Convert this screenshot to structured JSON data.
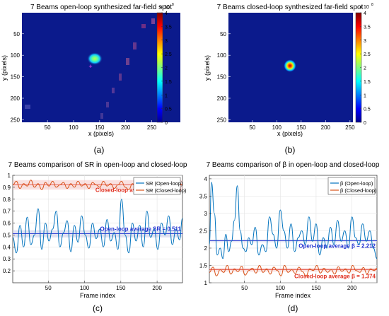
{
  "colors": {
    "blue_series": "#0072BD",
    "orange_series": "#D95319",
    "heat_bg": "#0b1a8c",
    "red_text": "#e03020",
    "blue_text": "#1f2fd0",
    "band_red": "#f4c8c8",
    "band_blue": "#c9cbe8"
  },
  "chart_data": [
    {
      "type": "heatmap",
      "title": "7 Beams open-loop synthesized far-field spot",
      "xlabel": "x (pixels)",
      "ylabel": "y (pixels)",
      "xlim": [
        1,
        256
      ],
      "ylim": [
        1,
        256
      ],
      "xticks": [
        "50",
        "100",
        "150",
        "200",
        "250"
      ],
      "yticks": [
        "50",
        "100",
        "150",
        "200",
        "250"
      ],
      "colorbar": {
        "ticks": [
          "0",
          "0.5",
          "1",
          "1.5",
          "2",
          "2.5",
          "3",
          "3.5",
          "4"
        ],
        "multiplier": "× 10",
        "exponent": "8",
        "range": [
          0,
          4
        ]
      },
      "spot": {
        "x": 130,
        "y": 112,
        "peak": 2.2
      },
      "marker": {
        "x": 128,
        "y": 128,
        "symbol": "+"
      },
      "panel_label": "(a)"
    },
    {
      "type": "heatmap",
      "title": "7 Beams closed-loop synthesized far-field spot",
      "xlabel": "x (pixels)",
      "ylabel": "y (pixels)",
      "xlim": [
        1,
        256
      ],
      "ylim": [
        1,
        256
      ],
      "xticks": [
        "50",
        "100",
        "150",
        "200",
        "250"
      ],
      "yticks": [
        "50",
        "100",
        "150",
        "200",
        "250"
      ],
      "colorbar": {
        "ticks": [
          "0",
          "0.5",
          "1",
          "1.5",
          "2",
          "2.5",
          "3",
          "3.5",
          "4"
        ],
        "multiplier": "× 10",
        "exponent": "8",
        "range": [
          0,
          4
        ]
      },
      "spot": {
        "x": 125,
        "y": 125,
        "peak": 4.0
      },
      "panel_label": "(b)"
    },
    {
      "type": "line",
      "title": "7 Beams comparison of SR in open-loop and closed-loop",
      "xlabel": "Frame index",
      "ylabel": "",
      "xlim": [
        1,
        235
      ],
      "ylim": [
        0.1,
        1.0
      ],
      "xticks": [
        50,
        100,
        150,
        200
      ],
      "yticks": [
        0.2,
        0.3,
        0.4,
        0.5,
        0.6,
        0.7,
        0.8,
        0.9,
        1
      ],
      "ytick_labels": [
        "0.2",
        "0.3",
        "0.4",
        "0.5",
        "0.6",
        "0.7",
        "0.8",
        "0.9",
        "1"
      ],
      "legend": {
        "position": "top-right",
        "entries": [
          "SR (Open-loop)",
          "SR (Closed-loop)"
        ]
      },
      "series": [
        {
          "name": "SR (Open-loop)",
          "color": "#0072BD",
          "x": [
            1,
            6,
            11,
            16,
            21,
            26,
            31,
            36,
            41,
            46,
            51,
            56,
            61,
            66,
            71,
            76,
            81,
            86,
            91,
            96,
            101,
            106,
            111,
            116,
            121,
            126,
            131,
            136,
            141,
            146,
            151,
            156,
            161,
            166,
            171,
            176,
            181,
            186,
            191,
            196,
            201,
            206,
            211,
            216,
            221,
            226,
            231,
            235
          ],
          "y": [
            0.48,
            0.35,
            0.58,
            0.4,
            0.65,
            0.42,
            0.5,
            0.72,
            0.38,
            0.6,
            0.45,
            0.55,
            0.7,
            0.4,
            0.52,
            0.62,
            0.36,
            0.58,
            0.44,
            0.66,
            0.5,
            0.39,
            0.6,
            0.47,
            0.55,
            0.4,
            0.63,
            0.45,
            0.52,
            0.38,
            0.8,
            0.5,
            0.35,
            0.6,
            0.45,
            0.58,
            0.4,
            0.7,
            0.48,
            0.55,
            0.38,
            0.6,
            0.5,
            0.66,
            0.42,
            0.55,
            0.46,
            0.64
          ]
        },
        {
          "name": "SR (Closed-loop)",
          "color": "#D95319",
          "x": [
            1,
            6,
            11,
            16,
            21,
            26,
            31,
            36,
            41,
            46,
            51,
            56,
            61,
            66,
            71,
            76,
            81,
            86,
            91,
            96,
            101,
            106,
            111,
            116,
            121,
            126,
            131,
            136,
            141,
            146,
            151,
            156,
            161,
            166,
            171,
            176,
            181,
            186,
            191,
            196,
            201,
            206,
            211,
            216,
            221,
            226,
            231,
            235
          ],
          "y": [
            0.92,
            0.95,
            0.89,
            0.93,
            0.91,
            0.96,
            0.9,
            0.93,
            0.88,
            0.94,
            0.91,
            0.95,
            0.9,
            0.92,
            0.94,
            0.89,
            0.93,
            0.9,
            0.95,
            0.91,
            0.93,
            0.89,
            0.94,
            0.92,
            0.9,
            0.95,
            0.91,
            0.93,
            0.89,
            0.92,
            0.95,
            0.9,
            0.88,
            0.93,
            0.91,
            0.94,
            0.9,
            0.92,
            0.95,
            0.91,
            0.89,
            0.93,
            0.92,
            0.9,
            0.94,
            0.91,
            0.93,
            0.92
          ]
        }
      ],
      "reference_lines": [
        {
          "value": 0.92,
          "label": "Closed-loop average SR = 0.920",
          "color": "#e03020",
          "band": [
            0.88,
            0.96
          ]
        },
        {
          "value": 0.511,
          "label": "Open-loop average SR = 0.511",
          "color": "#1f2fd0",
          "band": [
            0.48,
            0.54
          ]
        }
      ],
      "panel_label": "(c)"
    },
    {
      "type": "line",
      "title": "7 Beams comparison of β in open-loop and closed-loop",
      "xlabel": "Frame index",
      "ylabel": "",
      "xlim": [
        1,
        235
      ],
      "ylim": [
        1.0,
        4.1
      ],
      "xticks": [
        50,
        100,
        150,
        200
      ],
      "yticks": [
        1,
        1.5,
        2,
        2.5,
        3,
        3.5,
        4
      ],
      "ytick_labels": [
        "1",
        "1.5",
        "2",
        "2.5",
        "3",
        "3.5",
        "4"
      ],
      "legend": {
        "position": "top-right",
        "entries": [
          "β (Open-loop)",
          "β (Closed-loop)"
        ]
      },
      "series": [
        {
          "name": "β (Open-loop)",
          "color": "#0072BD",
          "x": [
            1,
            4,
            8,
            12,
            16,
            20,
            24,
            28,
            32,
            36,
            40,
            44,
            48,
            52,
            56,
            60,
            65,
            70,
            75,
            80,
            85,
            90,
            95,
            100,
            105,
            110,
            115,
            120,
            125,
            130,
            135,
            140,
            145,
            150,
            155,
            160,
            165,
            170,
            175,
            180,
            185,
            190,
            195,
            200,
            205,
            210,
            215,
            220,
            225,
            230,
            235
          ],
          "y": [
            2.1,
            3.9,
            3.0,
            1.8,
            2.0,
            1.7,
            2.4,
            1.9,
            2.2,
            2.8,
            3.8,
            2.5,
            2.0,
            1.9,
            2.3,
            2.1,
            2.6,
            1.8,
            2.1,
            1.9,
            2.9,
            2.4,
            2.0,
            3.1,
            2.5,
            2.0,
            2.7,
            1.9,
            2.3,
            2.5,
            2.1,
            2.9,
            2.2,
            2.7,
            1.8,
            2.3,
            2.0,
            2.6,
            2.1,
            2.8,
            2.2,
            2.5,
            2.0,
            2.9,
            2.3,
            2.1,
            2.7,
            2.2,
            2.5,
            2.0,
            1.7
          ]
        },
        {
          "name": "β (Closed-loop)",
          "color": "#D95319",
          "x": [
            1,
            6,
            11,
            16,
            21,
            26,
            31,
            36,
            41,
            46,
            51,
            56,
            61,
            66,
            71,
            76,
            81,
            86,
            91,
            96,
            101,
            106,
            111,
            116,
            121,
            126,
            131,
            136,
            141,
            146,
            151,
            156,
            161,
            166,
            171,
            176,
            181,
            186,
            191,
            196,
            201,
            206,
            211,
            216,
            221,
            226,
            231,
            235
          ],
          "y": [
            1.3,
            1.45,
            1.2,
            1.38,
            1.3,
            1.5,
            1.25,
            1.4,
            1.32,
            1.48,
            1.22,
            1.35,
            1.42,
            1.28,
            1.5,
            1.3,
            1.4,
            1.25,
            1.45,
            1.35,
            1.2,
            1.5,
            1.3,
            1.38,
            1.27,
            1.45,
            1.32,
            1.2,
            1.4,
            1.35,
            1.5,
            1.28,
            1.42,
            1.3,
            1.38,
            1.25,
            1.46,
            1.33,
            1.4,
            1.28,
            1.5,
            1.35,
            1.3,
            1.44,
            1.26,
            1.4,
            1.35,
            1.42
          ]
        }
      ],
      "reference_lines": [
        {
          "value": 2.212,
          "label": "Open-loop average β = 2.212",
          "color": "#1f2fd0",
          "band": [
            2.17,
            2.25
          ]
        },
        {
          "value": 1.374,
          "label": "Closed-loop average β = 1.374",
          "color": "#e03020",
          "band": [
            1.32,
            1.43
          ]
        }
      ],
      "panel_label": "(d)"
    }
  ]
}
